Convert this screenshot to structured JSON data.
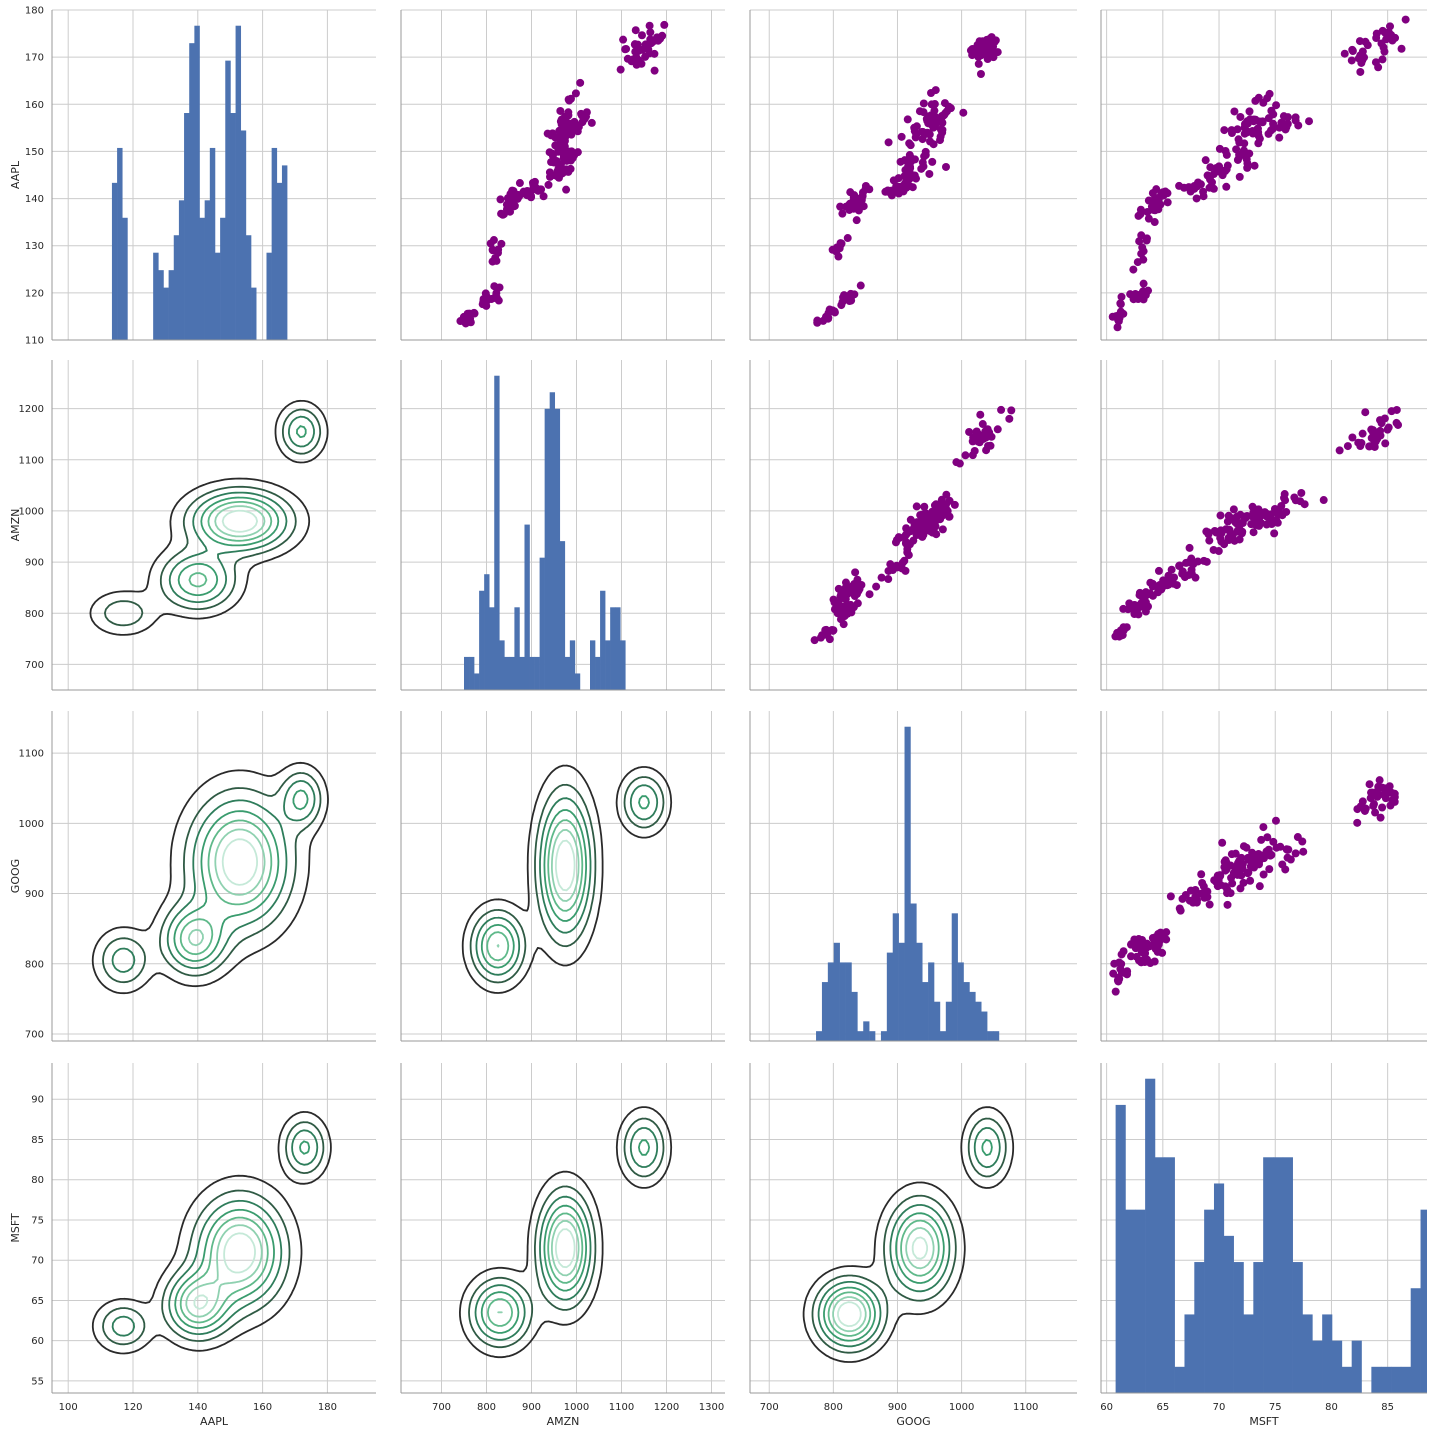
{
  "chart_data": {
    "type": "pairgrid",
    "variables": [
      "AAPL",
      "AMZN",
      "GOOG",
      "MSFT"
    ],
    "axes": {
      "AAPL": {
        "range": [
          95,
          195
        ],
        "ticks": [
          100,
          120,
          140,
          160,
          180
        ],
        "tick_labels": [
          "100",
          "120",
          "140",
          "160",
          "180"
        ],
        "y_range": [
          110,
          180
        ],
        "y_ticks": [
          110,
          120,
          130,
          140,
          150,
          160,
          170,
          180
        ],
        "y_tick_labels": [
          "110",
          "120",
          "130",
          "140",
          "150",
          "160",
          "170",
          "180"
        ]
      },
      "AMZN": {
        "range": [
          610,
          1330
        ],
        "ticks": [
          700,
          800,
          900,
          1000,
          1100,
          1200,
          1300
        ],
        "tick_labels": [
          "700",
          "800",
          "900",
          "1000",
          "1100",
          "1200",
          "1300"
        ],
        "y_range": [
          650,
          1295
        ],
        "y_ticks": [
          700,
          800,
          900,
          1000,
          1100,
          1200
        ],
        "y_tick_labels": [
          "700",
          "800",
          "900",
          "1000",
          "1100",
          "1200"
        ]
      },
      "GOOG": {
        "range": [
          670,
          1180
        ],
        "ticks": [
          700,
          800,
          900,
          1000,
          1100
        ],
        "tick_labels": [
          "700",
          "800",
          "900",
          "1000",
          "1100"
        ],
        "y_range": [
          690,
          1160
        ],
        "y_ticks": [
          700,
          800,
          900,
          1000,
          1100
        ],
        "y_tick_labels": [
          "700",
          "800",
          "900",
          "1000",
          "1100"
        ]
      },
      "MSFT": {
        "range": [
          59.5,
          88.5
        ],
        "ticks": [
          60,
          65,
          70,
          75,
          80,
          85
        ],
        "tick_labels": [
          "60",
          "65",
          "70",
          "75",
          "80",
          "85"
        ],
        "y_range": [
          53.5,
          94.5
        ],
        "y_ticks": [
          55,
          60,
          65,
          70,
          75,
          80,
          85,
          90
        ],
        "y_tick_labels": [
          "55",
          "60",
          "65",
          "70",
          "75",
          "80",
          "85",
          "90"
        ]
      }
    },
    "upper": "scatter",
    "lower": "kde",
    "diag": "hist",
    "scatter_color": "#800080",
    "hist_color": "#4c72b0",
    "kde_colors": [
      "#2a2a2a",
      "#2f5a44",
      "#2e7d5b",
      "#3a9c6e",
      "#5fb98a",
      "#8fd1b0",
      "#c5e9d8"
    ],
    "grid": true,
    "histograms": {
      "AAPL": {
        "bin_start": 113.5,
        "bin_width": 1.59,
        "counts": [
          9,
          11,
          7,
          0,
          0,
          0,
          0,
          0,
          5,
          4,
          3,
          4,
          6,
          8,
          13,
          17,
          18,
          7,
          8,
          11,
          5,
          7,
          16,
          13,
          18,
          12,
          6,
          3,
          0,
          0,
          5,
          11,
          9,
          10
        ]
      },
      "AMZN": {
        "bin_start": 750,
        "bin_width": 11.2,
        "counts": [
          2,
          2,
          1,
          6,
          7,
          5,
          19,
          3,
          2,
          2,
          5,
          2,
          10,
          2,
          2,
          8,
          17,
          18,
          17,
          9,
          2,
          3,
          1,
          0,
          0,
          3,
          2,
          6,
          3,
          5,
          5,
          3
        ]
      },
      "GOOG": {
        "bin_start": 773,
        "bin_width": 9.2,
        "counts": [
          1,
          6,
          8,
          10,
          8,
          8,
          5,
          1,
          2,
          1,
          0,
          1,
          9,
          13,
          10,
          32,
          14,
          10,
          6,
          8,
          4,
          1,
          4,
          13,
          8,
          6,
          5,
          4,
          3,
          1,
          1
        ]
      },
      "MSFT": {
        "bin_start": 60.8,
        "bin_width": 0.875,
        "counts": [
          11,
          7,
          7,
          12,
          9,
          9,
          1,
          3,
          5,
          7,
          8,
          6,
          5,
          3,
          5,
          9,
          9,
          9,
          5,
          3,
          2,
          3,
          2,
          1,
          2,
          0,
          1,
          1,
          1,
          1,
          4,
          7,
          3,
          5,
          1
        ]
      }
    },
    "kde_centers": {
      "AAPL_AMZN": [
        {
          "x": 117,
          "y": 800,
          "sx": 6,
          "sy": 25,
          "w": 0.25
        },
        {
          "x": 140,
          "y": 865,
          "sx": 7,
          "sy": 35,
          "w": 0.6
        },
        {
          "x": 153,
          "y": 980,
          "sx": 9,
          "sy": 35,
          "w": 1.0
        },
        {
          "x": 172,
          "y": 1155,
          "sx": 4,
          "sy": 30,
          "w": 0.45
        }
      ],
      "AAPL_GOOG": [
        {
          "x": 117,
          "y": 805,
          "sx": 5,
          "sy": 25,
          "w": 0.35
        },
        {
          "x": 139,
          "y": 835,
          "sx": 6,
          "sy": 30,
          "w": 0.7
        },
        {
          "x": 153,
          "y": 945,
          "sx": 9,
          "sy": 55,
          "w": 1.0
        },
        {
          "x": 172,
          "y": 1035,
          "sx": 4,
          "sy": 25,
          "w": 0.45
        }
      ],
      "AMZN_GOOG": [
        {
          "x": 825,
          "y": 825,
          "sx": 35,
          "sy": 30,
          "w": 0.7
        },
        {
          "x": 975,
          "y": 940,
          "sx": 35,
          "sy": 60,
          "w": 1.0
        },
        {
          "x": 1150,
          "y": 1030,
          "sx": 30,
          "sy": 25,
          "w": 0.45
        }
      ],
      "AAPL_MSFT": [
        {
          "x": 117,
          "y": 61.8,
          "sx": 5,
          "sy": 1.8,
          "w": 0.35
        },
        {
          "x": 140,
          "y": 64.5,
          "sx": 6,
          "sy": 2.5,
          "w": 0.8
        },
        {
          "x": 153,
          "y": 71,
          "sx": 8,
          "sy": 4,
          "w": 1.0
        },
        {
          "x": 173,
          "y": 84,
          "sx": 4,
          "sy": 2.2,
          "w": 0.45
        }
      ],
      "AMZN_MSFT": [
        {
          "x": 830,
          "y": 63.5,
          "sx": 40,
          "sy": 2.5,
          "w": 0.7
        },
        {
          "x": 975,
          "y": 71.5,
          "sx": 35,
          "sy": 4,
          "w": 1.0
        },
        {
          "x": 1150,
          "y": 84,
          "sx": 30,
          "sy": 2.5,
          "w": 0.45
        }
      ],
      "GOOG_MSFT": [
        {
          "x": 825,
          "y": 63.3,
          "sx": 30,
          "sy": 2.5,
          "w": 1.0
        },
        {
          "x": 935,
          "y": 71.5,
          "sx": 30,
          "sy": 3.5,
          "w": 0.9
        },
        {
          "x": 1040,
          "y": 84,
          "sx": 20,
          "sy": 2.5,
          "w": 0.45
        }
      ]
    },
    "scatter_clusters": [
      {
        "aapl": 115,
        "amzn": 760,
        "goog": 790,
        "msft": 61.2,
        "s_aapl": 1.2,
        "s_amzn": 12,
        "s_goog": 12,
        "s_msft": 0.4,
        "n": 14
      },
      {
        "aapl": 119,
        "amzn": 810,
        "goog": 825,
        "msft": 62.5,
        "s_aapl": 1.5,
        "s_amzn": 15,
        "s_goog": 10,
        "s_msft": 0.8,
        "n": 16
      },
      {
        "aapl": 129,
        "amzn": 820,
        "goog": 810,
        "msft": 63.2,
        "s_aapl": 2.5,
        "s_amzn": 10,
        "s_goog": 10,
        "s_msft": 0.5,
        "n": 10
      },
      {
        "aapl": 139,
        "amzn": 850,
        "goog": 830,
        "msft": 64.5,
        "s_aapl": 2,
        "s_amzn": 15,
        "s_goog": 15,
        "s_msft": 0.8,
        "n": 28
      },
      {
        "aapl": 142,
        "amzn": 900,
        "goog": 900,
        "msft": 68,
        "s_aapl": 2,
        "s_amzn": 25,
        "s_goog": 20,
        "s_msft": 1.5,
        "n": 20
      },
      {
        "aapl": 147,
        "amzn": 970,
        "goog": 935,
        "msft": 71,
        "s_aapl": 3,
        "s_amzn": 25,
        "s_goog": 25,
        "s_msft": 1.5,
        "n": 30
      },
      {
        "aapl": 155,
        "amzn": 975,
        "goog": 945,
        "msft": 73,
        "s_aapl": 4,
        "s_amzn": 22,
        "s_goog": 25,
        "s_msft": 1.8,
        "n": 48
      },
      {
        "aapl": 156,
        "amzn": 1000,
        "goog": 960,
        "msft": 76,
        "s_aapl": 2,
        "s_amzn": 20,
        "s_goog": 25,
        "s_msft": 1.5,
        "n": 14
      },
      {
        "aapl": 172,
        "amzn": 1150,
        "goog": 1035,
        "msft": 84,
        "s_aapl": 3,
        "s_amzn": 30,
        "s_goog": 20,
        "s_msft": 1.5,
        "n": 36
      }
    ]
  }
}
